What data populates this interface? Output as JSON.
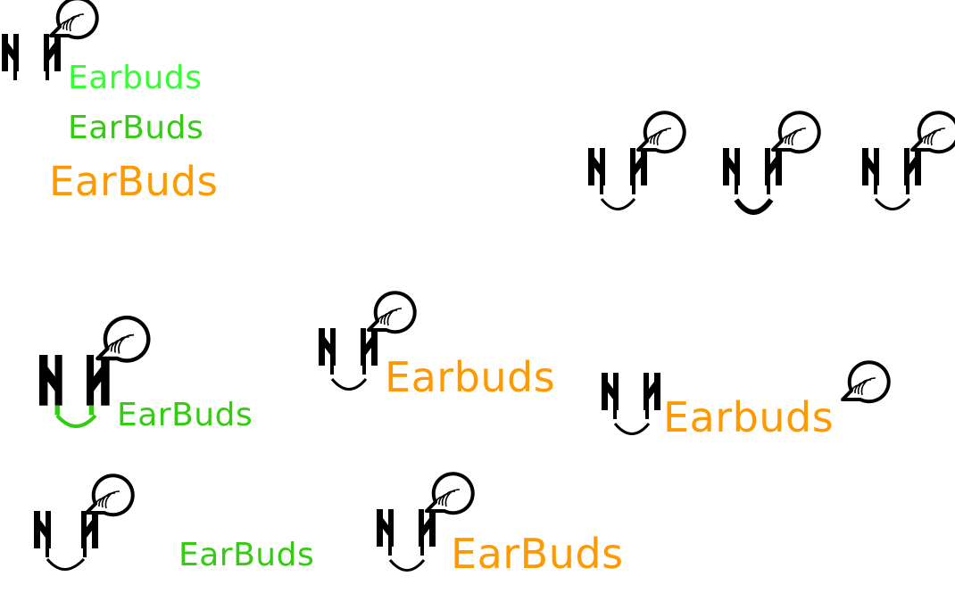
{
  "colors": {
    "bright_green": "#33ff33",
    "green": "#33cc11",
    "orange": "#ff9900",
    "black": "#000000"
  },
  "wordmarks": {
    "w1": "Earbuds",
    "w2": "EarBuds",
    "w3": "EarBuds",
    "w4": "EarBuds",
    "w5": "Earbuds",
    "w6": "Earbuds",
    "w7": "EarBuds",
    "w8": "EarBuds"
  },
  "icons": [
    "earbuds-speech-bubble-icon",
    "earbuds-smile-icon",
    "sound-waves-bubble-icon"
  ]
}
